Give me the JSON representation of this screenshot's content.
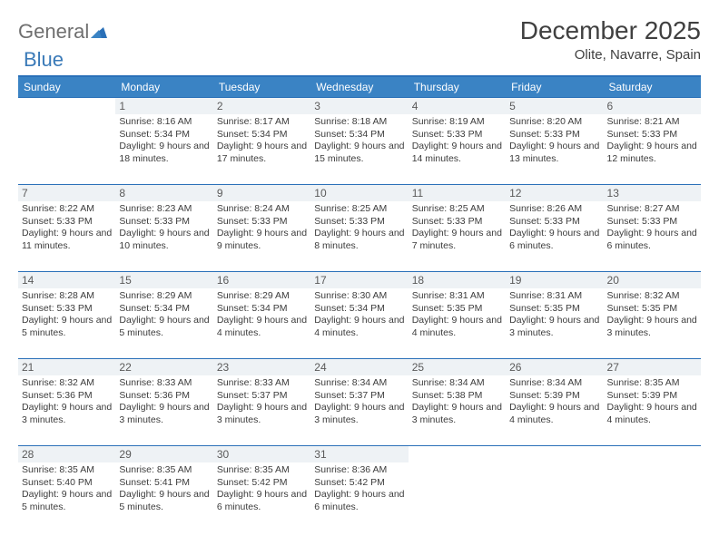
{
  "logo": {
    "text1": "General",
    "text2": "Blue"
  },
  "title": "December 2025",
  "location": "Olite, Navarre, Spain",
  "colors": {
    "header_bg": "#3a83c4",
    "rule": "#2a70b8",
    "daynum_bg": "#eef2f5",
    "text": "#3c3c3c",
    "logo_gray": "#6f6f6f",
    "logo_blue": "#3a7ab8"
  },
  "weekdays": [
    "Sunday",
    "Monday",
    "Tuesday",
    "Wednesday",
    "Thursday",
    "Friday",
    "Saturday"
  ],
  "weeks": [
    [
      {
        "n": "",
        "sr": "",
        "ss": "",
        "dl": ""
      },
      {
        "n": "1",
        "sr": "Sunrise: 8:16 AM",
        "ss": "Sunset: 5:34 PM",
        "dl": "Daylight: 9 hours and 18 minutes."
      },
      {
        "n": "2",
        "sr": "Sunrise: 8:17 AM",
        "ss": "Sunset: 5:34 PM",
        "dl": "Daylight: 9 hours and 17 minutes."
      },
      {
        "n": "3",
        "sr": "Sunrise: 8:18 AM",
        "ss": "Sunset: 5:34 PM",
        "dl": "Daylight: 9 hours and 15 minutes."
      },
      {
        "n": "4",
        "sr": "Sunrise: 8:19 AM",
        "ss": "Sunset: 5:33 PM",
        "dl": "Daylight: 9 hours and 14 minutes."
      },
      {
        "n": "5",
        "sr": "Sunrise: 8:20 AM",
        "ss": "Sunset: 5:33 PM",
        "dl": "Daylight: 9 hours and 13 minutes."
      },
      {
        "n": "6",
        "sr": "Sunrise: 8:21 AM",
        "ss": "Sunset: 5:33 PM",
        "dl": "Daylight: 9 hours and 12 minutes."
      }
    ],
    [
      {
        "n": "7",
        "sr": "Sunrise: 8:22 AM",
        "ss": "Sunset: 5:33 PM",
        "dl": "Daylight: 9 hours and 11 minutes."
      },
      {
        "n": "8",
        "sr": "Sunrise: 8:23 AM",
        "ss": "Sunset: 5:33 PM",
        "dl": "Daylight: 9 hours and 10 minutes."
      },
      {
        "n": "9",
        "sr": "Sunrise: 8:24 AM",
        "ss": "Sunset: 5:33 PM",
        "dl": "Daylight: 9 hours and 9 minutes."
      },
      {
        "n": "10",
        "sr": "Sunrise: 8:25 AM",
        "ss": "Sunset: 5:33 PM",
        "dl": "Daylight: 9 hours and 8 minutes."
      },
      {
        "n": "11",
        "sr": "Sunrise: 8:25 AM",
        "ss": "Sunset: 5:33 PM",
        "dl": "Daylight: 9 hours and 7 minutes."
      },
      {
        "n": "12",
        "sr": "Sunrise: 8:26 AM",
        "ss": "Sunset: 5:33 PM",
        "dl": "Daylight: 9 hours and 6 minutes."
      },
      {
        "n": "13",
        "sr": "Sunrise: 8:27 AM",
        "ss": "Sunset: 5:33 PM",
        "dl": "Daylight: 9 hours and 6 minutes."
      }
    ],
    [
      {
        "n": "14",
        "sr": "Sunrise: 8:28 AM",
        "ss": "Sunset: 5:33 PM",
        "dl": "Daylight: 9 hours and 5 minutes."
      },
      {
        "n": "15",
        "sr": "Sunrise: 8:29 AM",
        "ss": "Sunset: 5:34 PM",
        "dl": "Daylight: 9 hours and 5 minutes."
      },
      {
        "n": "16",
        "sr": "Sunrise: 8:29 AM",
        "ss": "Sunset: 5:34 PM",
        "dl": "Daylight: 9 hours and 4 minutes."
      },
      {
        "n": "17",
        "sr": "Sunrise: 8:30 AM",
        "ss": "Sunset: 5:34 PM",
        "dl": "Daylight: 9 hours and 4 minutes."
      },
      {
        "n": "18",
        "sr": "Sunrise: 8:31 AM",
        "ss": "Sunset: 5:35 PM",
        "dl": "Daylight: 9 hours and 4 minutes."
      },
      {
        "n": "19",
        "sr": "Sunrise: 8:31 AM",
        "ss": "Sunset: 5:35 PM",
        "dl": "Daylight: 9 hours and 3 minutes."
      },
      {
        "n": "20",
        "sr": "Sunrise: 8:32 AM",
        "ss": "Sunset: 5:35 PM",
        "dl": "Daylight: 9 hours and 3 minutes."
      }
    ],
    [
      {
        "n": "21",
        "sr": "Sunrise: 8:32 AM",
        "ss": "Sunset: 5:36 PM",
        "dl": "Daylight: 9 hours and 3 minutes."
      },
      {
        "n": "22",
        "sr": "Sunrise: 8:33 AM",
        "ss": "Sunset: 5:36 PM",
        "dl": "Daylight: 9 hours and 3 minutes."
      },
      {
        "n": "23",
        "sr": "Sunrise: 8:33 AM",
        "ss": "Sunset: 5:37 PM",
        "dl": "Daylight: 9 hours and 3 minutes."
      },
      {
        "n": "24",
        "sr": "Sunrise: 8:34 AM",
        "ss": "Sunset: 5:37 PM",
        "dl": "Daylight: 9 hours and 3 minutes."
      },
      {
        "n": "25",
        "sr": "Sunrise: 8:34 AM",
        "ss": "Sunset: 5:38 PM",
        "dl": "Daylight: 9 hours and 3 minutes."
      },
      {
        "n": "26",
        "sr": "Sunrise: 8:34 AM",
        "ss": "Sunset: 5:39 PM",
        "dl": "Daylight: 9 hours and 4 minutes."
      },
      {
        "n": "27",
        "sr": "Sunrise: 8:35 AM",
        "ss": "Sunset: 5:39 PM",
        "dl": "Daylight: 9 hours and 4 minutes."
      }
    ],
    [
      {
        "n": "28",
        "sr": "Sunrise: 8:35 AM",
        "ss": "Sunset: 5:40 PM",
        "dl": "Daylight: 9 hours and 5 minutes."
      },
      {
        "n": "29",
        "sr": "Sunrise: 8:35 AM",
        "ss": "Sunset: 5:41 PM",
        "dl": "Daylight: 9 hours and 5 minutes."
      },
      {
        "n": "30",
        "sr": "Sunrise: 8:35 AM",
        "ss": "Sunset: 5:42 PM",
        "dl": "Daylight: 9 hours and 6 minutes."
      },
      {
        "n": "31",
        "sr": "Sunrise: 8:36 AM",
        "ss": "Sunset: 5:42 PM",
        "dl": "Daylight: 9 hours and 6 minutes."
      },
      {
        "n": "",
        "sr": "",
        "ss": "",
        "dl": ""
      },
      {
        "n": "",
        "sr": "",
        "ss": "",
        "dl": ""
      },
      {
        "n": "",
        "sr": "",
        "ss": "",
        "dl": ""
      }
    ]
  ]
}
